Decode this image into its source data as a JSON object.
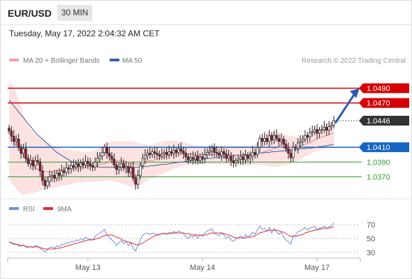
{
  "header": {
    "symbol": "EUR/USD",
    "interval": "30 MIN",
    "datetime": "Tuesday, May 17, 2022 2:04:32 AM CET"
  },
  "legend": {
    "ma20_bb": "MA 20 + Bollinger Bands",
    "ma50": "MA 50",
    "copyright": "Research © 2022 Trading Central",
    "rsi": "RSI",
    "rsi_ma": "9MA"
  },
  "colors": {
    "resistance": "#d50000",
    "support": "#2e9e2e",
    "pivot": "#1565c0",
    "current": "#333333",
    "ma20": "#e88080",
    "bands_fill": "#fde2e2",
    "ma50": "#3d5f9e",
    "up_candle": "#ffffff",
    "down_candle": "#a0162e",
    "rsi": "#6f8fe0",
    "rsi_ma": "#d93030",
    "arrow": "#2a5bb0"
  },
  "chart_data": [
    {
      "type": "candlestick",
      "x_ticks": [
        "May 13",
        "May 14",
        "May 17"
      ],
      "ylim": [
        1.0345,
        1.0515
      ],
      "levels": [
        {
          "value": 1.049,
          "label": "1.0490",
          "kind": "resistance"
        },
        {
          "value": 1.047,
          "label": "1.0470",
          "kind": "resistance"
        },
        {
          "value": 1.0446,
          "label": "1.0446",
          "kind": "current"
        },
        {
          "value": 1.041,
          "label": "1.0410",
          "kind": "pivot"
        },
        {
          "value": 1.039,
          "label": "1.0390",
          "kind": "support"
        },
        {
          "value": 1.037,
          "label": "1.0370",
          "kind": "support"
        }
      ],
      "close": [
        1.0432,
        1.0425,
        1.0418,
        1.0421,
        1.041,
        1.0402,
        1.0408,
        1.0395,
        1.0388,
        1.0392,
        1.0385,
        1.0392,
        1.039,
        1.0378,
        1.0365,
        1.0358,
        1.0364,
        1.037,
        1.0372,
        1.0368,
        1.0375,
        1.0372,
        1.0378,
        1.0376,
        1.0382,
        1.0381,
        1.0385,
        1.0383,
        1.0387,
        1.0384,
        1.0389,
        1.0386,
        1.0391,
        1.0388,
        1.0385,
        1.0383,
        1.039,
        1.0395,
        1.0398,
        1.0403,
        1.041,
        1.0402,
        1.0398,
        1.0394,
        1.0386,
        1.038,
        1.0383,
        1.0388,
        1.0382,
        1.0384,
        1.0376,
        1.0382,
        1.0368,
        1.036,
        1.0372,
        1.0385,
        1.0395,
        1.0399,
        1.0402,
        1.04,
        1.0404,
        1.0402,
        1.04,
        1.0398,
        1.0401,
        1.0403,
        1.04,
        1.0404,
        1.0402,
        1.0406,
        1.0403,
        1.0408,
        1.0405,
        1.0402,
        1.0397,
        1.0393,
        1.0396,
        1.0394,
        1.0398,
        1.0392,
        1.0397,
        1.0395,
        1.04,
        1.0403,
        1.0405,
        1.0409,
        1.0403,
        1.0402,
        1.0399,
        1.0404,
        1.0401,
        1.0395,
        1.0398,
        1.0392,
        1.0389,
        1.0392,
        1.0394,
        1.0397,
        1.0393,
        1.0399,
        1.0395,
        1.0398,
        1.0403,
        1.04,
        1.041,
        1.0422,
        1.0418,
        1.0422,
        1.0418,
        1.0426,
        1.042,
        1.0426,
        1.0422,
        1.0418,
        1.0421,
        1.0414,
        1.0408,
        1.0402,
        1.0396,
        1.041,
        1.0409,
        1.0416,
        1.0418,
        1.0421,
        1.0426,
        1.0424,
        1.043,
        1.0431,
        1.0434,
        1.0429,
        1.0433,
        1.0434,
        1.0437,
        1.0433,
        1.0438,
        1.044,
        1.0446
      ],
      "ma20": [
        1.0424,
        1.042,
        1.0417,
        1.0412,
        1.0408,
        1.0403,
        1.0399,
        1.0395,
        1.0391,
        1.0387,
        1.0384,
        1.0382,
        1.038,
        1.0379,
        1.0378,
        1.0377,
        1.0377,
        1.0377,
        1.0377,
        1.0378,
        1.0378,
        1.0379,
        1.0379,
        1.038,
        1.038,
        1.0381,
        1.0381,
        1.0381,
        1.0382,
        1.0382,
        1.0382,
        1.0383,
        1.0383,
        1.0384,
        1.0384,
        1.0385,
        1.0386,
        1.0386,
        1.0387,
        1.0387,
        1.0388,
        1.0389,
        1.039,
        1.0391,
        1.0392,
        1.0392,
        1.0392,
        1.0392,
        1.0391,
        1.039,
        1.0389,
        1.0388,
        1.0388,
        1.0387,
        1.0387,
        1.0388,
        1.0389,
        1.039,
        1.0391,
        1.0392,
        1.0392,
        1.0393,
        1.0394,
        1.0395,
        1.0396,
        1.0397,
        1.0398,
        1.0399,
        1.04,
        1.04,
        1.0401,
        1.0401,
        1.0401,
        1.0401,
        1.0401,
        1.0401,
        1.0401,
        1.0401,
        1.04,
        1.04,
        1.04,
        1.04,
        1.04,
        1.04,
        1.04,
        1.04,
        1.04,
        1.04,
        1.04,
        1.04,
        1.04,
        1.04,
        1.04,
        1.04,
        1.04,
        1.0399,
        1.0399,
        1.0399,
        1.0399,
        1.0399,
        1.0399,
        1.0399,
        1.04,
        1.04,
        1.0401,
        1.0402,
        1.0403,
        1.0404,
        1.0405,
        1.0406,
        1.0407,
        1.0408,
        1.0409,
        1.041,
        1.041,
        1.041,
        1.041,
        1.041,
        1.041,
        1.041,
        1.0411,
        1.0411,
        1.0412,
        1.0413,
        1.0414,
        1.0415,
        1.0416,
        1.0418,
        1.042,
        1.0421,
        1.0423,
        1.0424,
        1.0425,
        1.0426,
        1.0427,
        1.0428,
        1.043
      ],
      "band_upper": [
        1.05,
        1.0494,
        1.049,
        1.0484,
        1.0474,
        1.0464,
        1.0454,
        1.0446,
        1.044,
        1.0434,
        1.043,
        1.0428,
        1.0426,
        1.0424,
        1.0422,
        1.042,
        1.0418,
        1.0416,
        1.0414,
        1.0412,
        1.041,
        1.0409,
        1.0408,
        1.0407,
        1.0407,
        1.0406,
        1.0406,
        1.0405,
        1.0405,
        1.0405,
        1.0404,
        1.0404,
        1.0404,
        1.0404,
        1.0404,
        1.0405,
        1.0406,
        1.0408,
        1.041,
        1.0412,
        1.0414,
        1.0416,
        1.0417,
        1.0418,
        1.0418,
        1.0418,
        1.0418,
        1.0418,
        1.0418,
        1.0418,
        1.0418,
        1.0418,
        1.0418,
        1.0417,
        1.0416,
        1.0415,
        1.0414,
        1.0413,
        1.0413,
        1.0413,
        1.0414,
        1.0415,
        1.0416,
        1.0417,
        1.0418,
        1.0419,
        1.0419,
        1.0419,
        1.0419,
        1.0419,
        1.0419,
        1.0418,
        1.0418,
        1.0417,
        1.0416,
        1.0415,
        1.0414,
        1.0413,
        1.0412,
        1.0412,
        1.0412,
        1.0412,
        1.0412,
        1.0412,
        1.0412,
        1.0412,
        1.0412,
        1.0412,
        1.0412,
        1.0412,
        1.0412,
        1.0412,
        1.0412,
        1.0412,
        1.0412,
        1.0412,
        1.0412,
        1.0412,
        1.0412,
        1.0412,
        1.0412,
        1.0412,
        1.0413,
        1.0414,
        1.0416,
        1.042,
        1.0424,
        1.0427,
        1.0429,
        1.043,
        1.0431,
        1.0431,
        1.0431,
        1.043,
        1.0429,
        1.0428,
        1.0427,
        1.0426,
        1.0425,
        1.0425,
        1.0424,
        1.0424,
        1.0424,
        1.0425,
        1.0426,
        1.0427,
        1.0428,
        1.043,
        1.0432,
        1.0434,
        1.0436,
        1.0438,
        1.044,
        1.0442,
        1.0443,
        1.0444,
        1.0446
      ],
      "band_lower": [
        1.0366,
        1.0362,
        1.0358,
        1.0354,
        1.035,
        1.0347,
        1.0346,
        1.0346,
        1.0347,
        1.0348,
        1.0348,
        1.0349,
        1.035,
        1.0351,
        1.0352,
        1.0353,
        1.0354,
        1.0354,
        1.0354,
        1.0355,
        1.0356,
        1.0357,
        1.0358,
        1.0358,
        1.0359,
        1.0359,
        1.036,
        1.0361,
        1.0362,
        1.0362,
        1.0362,
        1.0362,
        1.0363,
        1.0363,
        1.0363,
        1.0363,
        1.0363,
        1.0364,
        1.0364,
        1.0364,
        1.0364,
        1.0365,
        1.0365,
        1.0365,
        1.0364,
        1.0363,
        1.0362,
        1.0361,
        1.036,
        1.0359,
        1.0358,
        1.0357,
        1.0356,
        1.0356,
        1.0357,
        1.0359,
        1.0361,
        1.0363,
        1.0365,
        1.0367,
        1.0368,
        1.0369,
        1.037,
        1.0372,
        1.0373,
        1.0375,
        1.0376,
        1.0378,
        1.0379,
        1.0381,
        1.0382,
        1.0383,
        1.0384,
        1.0385,
        1.0386,
        1.0386,
        1.0387,
        1.0387,
        1.0387,
        1.0387,
        1.0387,
        1.0387,
        1.0387,
        1.0387,
        1.0387,
        1.0387,
        1.0387,
        1.0387,
        1.0387,
        1.0387,
        1.0387,
        1.0387,
        1.0387,
        1.0387,
        1.0387,
        1.0386,
        1.0386,
        1.0386,
        1.0385,
        1.0385,
        1.0385,
        1.0386,
        1.0386,
        1.0386,
        1.0386,
        1.0386,
        1.0386,
        1.0386,
        1.0385,
        1.0384,
        1.0384,
        1.0384,
        1.0384,
        1.0384,
        1.0385,
        1.0385,
        1.0386,
        1.0387,
        1.0388,
        1.0389,
        1.039,
        1.0392,
        1.0393,
        1.0395,
        1.0397,
        1.0399,
        1.0401,
        1.0403,
        1.0404,
        1.0405,
        1.0406,
        1.0407,
        1.0408,
        1.0409,
        1.041,
        1.0411,
        1.0412
      ],
      "ma50": [
        1.0474,
        1.047,
        1.0466,
        1.0462,
        1.0458,
        1.0454,
        1.045,
        1.0446,
        1.0442,
        1.0438,
        1.0434,
        1.043,
        1.0427,
        1.0424,
        1.0421,
        1.0418,
        1.0415,
        1.0412,
        1.0409,
        1.0406,
        1.0403,
        1.0401,
        1.0399,
        1.0397,
        1.0395,
        1.0393,
        1.0391,
        1.039,
        1.0389,
        1.0388,
        1.0387,
        1.0386,
        1.0386,
        1.0385,
        1.0385,
        1.0384,
        1.0384,
        1.0384,
        1.0383,
        1.0383,
        1.0383,
        1.0383,
        1.0383,
        1.0383,
        1.0383,
        1.0383,
        1.0383,
        1.0383,
        1.0383,
        1.0383,
        1.0383,
        1.0383,
        1.0383,
        1.0383,
        1.0383,
        1.0383,
        1.0384,
        1.0384,
        1.0384,
        1.0385,
        1.0385,
        1.0385,
        1.0386,
        1.0386,
        1.0387,
        1.0387,
        1.0387,
        1.0388,
        1.0388,
        1.0389,
        1.0389,
        1.039,
        1.039,
        1.039,
        1.0391,
        1.0391,
        1.0392,
        1.0392,
        1.0393,
        1.0393,
        1.0393,
        1.0394,
        1.0394,
        1.0395,
        1.0395,
        1.0395,
        1.0396,
        1.0396,
        1.0396,
        1.0397,
        1.0397,
        1.0397,
        1.0398,
        1.0398,
        1.0398,
        1.0399,
        1.0399,
        1.0399,
        1.04,
        1.04,
        1.04,
        1.0401,
        1.0401,
        1.0401,
        1.0402,
        1.0402,
        1.0402,
        1.0403,
        1.0403,
        1.0403,
        1.0404,
        1.0404,
        1.0404,
        1.0405,
        1.0405,
        1.0405,
        1.0406,
        1.0406,
        1.0406,
        1.0407,
        1.0407,
        1.0407,
        1.0408,
        1.0408,
        1.0408,
        1.0409,
        1.0409,
        1.0409,
        1.041,
        1.041,
        1.0411,
        1.0411,
        1.0412,
        1.0412,
        1.0413,
        1.0413,
        1.0414
      ]
    },
    {
      "type": "line",
      "ylim": [
        20,
        80
      ],
      "reference_levels": [
        70,
        50,
        30
      ],
      "series": [
        {
          "name": "RSI",
          "values": [
            46,
            43,
            41,
            42,
            40,
            39,
            41,
            38,
            37,
            39,
            37,
            40,
            39,
            36,
            33,
            31,
            34,
            37,
            38,
            36,
            40,
            38,
            42,
            41,
            44,
            43,
            46,
            45,
            48,
            47,
            50,
            48,
            52,
            50,
            49,
            48,
            53,
            56,
            58,
            60,
            63,
            55,
            52,
            48,
            45,
            40,
            44,
            47,
            43,
            45,
            40,
            44,
            36,
            32,
            40,
            48,
            55,
            57,
            58,
            56,
            58,
            57,
            56,
            55,
            57,
            58,
            56,
            59,
            58,
            60,
            58,
            61,
            59,
            57,
            53,
            50,
            54,
            52,
            56,
            50,
            55,
            53,
            58,
            61,
            62,
            64,
            57,
            56,
            54,
            58,
            55,
            50,
            53,
            48,
            46,
            49,
            51,
            54,
            50,
            56,
            52,
            55,
            59,
            56,
            62,
            68,
            63,
            65,
            60,
            66,
            58,
            64,
            60,
            56,
            59,
            52,
            48,
            45,
            42,
            54,
            55,
            60,
            61,
            63,
            66,
            62,
            65,
            66,
            68,
            62,
            65,
            66,
            68,
            64,
            67,
            68,
            73
          ]
        },
        {
          "name": "9MA",
          "values": [
            45,
            44,
            43,
            42,
            41,
            40,
            40,
            39,
            38,
            38,
            38,
            38,
            38,
            37,
            36,
            35,
            35,
            35,
            35,
            35,
            36,
            36,
            37,
            38,
            39,
            40,
            41,
            42,
            43,
            44,
            45,
            46,
            47,
            48,
            48,
            48,
            49,
            50,
            51,
            53,
            54,
            55,
            55,
            55,
            54,
            52,
            51,
            49,
            47,
            46,
            45,
            44,
            43,
            41,
            41,
            42,
            44,
            46,
            48,
            50,
            52,
            54,
            55,
            56,
            57,
            57,
            57,
            57,
            57,
            58,
            58,
            58,
            58,
            58,
            57,
            57,
            56,
            55,
            55,
            55,
            55,
            55,
            55,
            56,
            57,
            58,
            58,
            58,
            58,
            58,
            57,
            56,
            55,
            54,
            52,
            51,
            51,
            51,
            51,
            51,
            52,
            52,
            53,
            54,
            56,
            58,
            59,
            60,
            61,
            62,
            62,
            62,
            62,
            61,
            60,
            59,
            57,
            55,
            53,
            53,
            53,
            54,
            55,
            56,
            58,
            59,
            60,
            61,
            62,
            63,
            63,
            64,
            65,
            65,
            65,
            66,
            67
          ]
        }
      ]
    }
  ]
}
